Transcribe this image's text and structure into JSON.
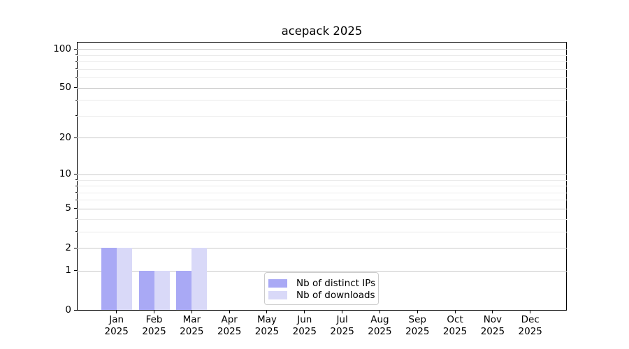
{
  "chart_data": {
    "type": "bar",
    "title": "acepack 2025",
    "categories": [
      "Jan 2025",
      "Feb 2025",
      "Mar 2025",
      "Apr 2025",
      "May 2025",
      "Jun 2025",
      "Jul 2025",
      "Aug 2025",
      "Sep 2025",
      "Oct 2025",
      "Nov 2025",
      "Dec 2025"
    ],
    "series": [
      {
        "name": "Nb of distinct IPs",
        "color": "#a9a9f5",
        "values": [
          2,
          1,
          1,
          0,
          0,
          0,
          0,
          0,
          0,
          0,
          0,
          0
        ]
      },
      {
        "name": "Nb of downloads",
        "color": "#d9d9f8",
        "values": [
          2,
          1,
          2,
          0,
          0,
          0,
          0,
          0,
          0,
          0,
          0,
          0
        ]
      }
    ],
    "xlabel": "",
    "ylabel": "",
    "y_axis": {
      "scale": "log1p",
      "major_ticks": [
        0,
        1,
        2,
        5,
        10,
        20,
        50,
        100
      ],
      "minor_gridlines": [
        3,
        4,
        6,
        7,
        8,
        9,
        30,
        40,
        60,
        70,
        80,
        90
      ],
      "ylim": [
        0,
        114
      ]
    },
    "legend": {
      "position": "bottom-center",
      "entries": [
        "Nb of distinct IPs",
        "Nb of downloads"
      ]
    },
    "grid": {
      "major_color": "#c9c9c9",
      "minor_color": "#ebebeb"
    },
    "colors": {
      "spine": "#000000",
      "text": "#000000",
      "background": "#ffffff"
    }
  }
}
